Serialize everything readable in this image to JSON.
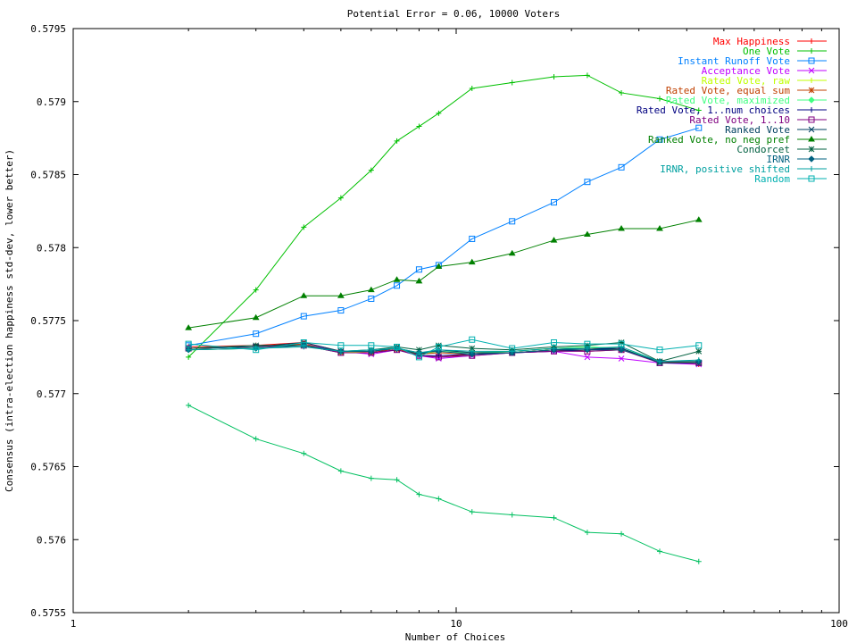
{
  "chart_data": {
    "type": "line",
    "title": "Potential Error = 0.06, 10000 Voters",
    "xlabel": "Number of Choices",
    "ylabel": "Consensus (intra-election happiness std-dev, lower better)",
    "xscale": "log",
    "xlim": [
      1,
      100
    ],
    "ylim": [
      0.5755,
      0.5795
    ],
    "xticks": [
      1,
      10,
      100
    ],
    "xtick_labels": [
      "1",
      "10",
      "100"
    ],
    "yticks": [
      0.5755,
      0.576,
      0.5765,
      0.577,
      0.5775,
      0.578,
      0.5785,
      0.579,
      0.5795
    ],
    "ytick_labels": [
      "0.5755",
      "0.576",
      "0.5765",
      "0.577",
      "0.5775",
      "0.578",
      "0.5785",
      "0.579",
      "0.5795"
    ],
    "grid": false,
    "legend_position": "top-right",
    "x": [
      2,
      3,
      4,
      5,
      6,
      7,
      8,
      9,
      11,
      14,
      18,
      22,
      27,
      34,
      43
    ],
    "series": [
      {
        "name": "Max Happiness",
        "color": "#ff0000",
        "marker": "plus",
        "values": [
          0.57732,
          0.57733,
          0.57735,
          0.57729,
          0.57728,
          0.57731,
          0.57726,
          0.57725,
          0.57727,
          0.57728,
          0.5773,
          0.57729,
          0.5773,
          0.57722,
          0.5772
        ]
      },
      {
        "name": "One Vote",
        "color": "#00c000",
        "marker": "plus",
        "values": [
          0.57725,
          0.57771,
          0.57814,
          0.57834,
          0.57853,
          0.57873,
          0.57883,
          0.57892,
          0.57909,
          0.57913,
          0.57917,
          0.57918,
          0.57906,
          0.57902,
          0.57894
        ]
      },
      {
        "name": "Instant Runoff Vote",
        "color": "#0080ff",
        "marker": "square",
        "values": [
          0.57733,
          0.57741,
          0.57753,
          0.57757,
          0.57765,
          0.57774,
          0.57785,
          0.57788,
          0.57806,
          0.57818,
          0.57831,
          0.57845,
          0.57855,
          0.57874,
          0.57882
        ]
      },
      {
        "name": "Acceptance Vote",
        "color": "#c000ff",
        "marker": "cross",
        "values": [
          0.57731,
          0.57732,
          0.57734,
          0.57729,
          0.57727,
          0.5773,
          0.57726,
          0.57724,
          0.57726,
          0.57728,
          0.57729,
          0.57725,
          0.57724,
          0.57721,
          0.5772
        ]
      },
      {
        "name": "Rated Vote, raw",
        "color": "#c0ff00",
        "marker": "plus",
        "values": [
          0.5773,
          0.57731,
          0.57733,
          0.57728,
          0.57729,
          0.57731,
          0.57727,
          0.57729,
          0.57728,
          0.57729,
          0.57731,
          0.57732,
          0.57731,
          0.57722,
          0.57722
        ]
      },
      {
        "name": "Rated Vote, equal sum",
        "color": "#c04000",
        "marker": "star",
        "values": [
          0.57731,
          0.57732,
          0.57734,
          0.57728,
          0.57728,
          0.5773,
          0.57727,
          0.57728,
          0.57727,
          0.57728,
          0.5773,
          0.57731,
          0.5773,
          0.57722,
          0.57721
        ]
      },
      {
        "name": "Rated Vote, maximized",
        "color": "#40ff80",
        "marker": "diamond",
        "values": [
          0.5773,
          0.57731,
          0.57733,
          0.57729,
          0.57729,
          0.57731,
          0.57728,
          0.57729,
          0.57728,
          0.57729,
          0.57731,
          0.57732,
          0.57731,
          0.57722,
          0.57722
        ]
      },
      {
        "name": "Rated Vote, 1..num choices",
        "color": "#000080",
        "marker": "plus",
        "values": [
          0.57731,
          0.57732,
          0.57733,
          0.57728,
          0.57728,
          0.5773,
          0.57726,
          0.57726,
          0.57727,
          0.57728,
          0.57729,
          0.5773,
          0.57731,
          0.57721,
          0.57721
        ]
      },
      {
        "name": "Rated Vote, 1..10",
        "color": "#800080",
        "marker": "square",
        "values": [
          0.57731,
          0.57732,
          0.57733,
          0.57728,
          0.57728,
          0.5773,
          0.57726,
          0.57725,
          0.57726,
          0.57728,
          0.57729,
          0.57729,
          0.5773,
          0.57721,
          0.57721
        ]
      },
      {
        "name": "Ranked Vote",
        "color": "#004060",
        "marker": "cross",
        "values": [
          0.57731,
          0.57732,
          0.57735,
          0.57729,
          0.57729,
          0.57731,
          0.57727,
          0.5773,
          0.57728,
          0.57728,
          0.5773,
          0.57731,
          0.57731,
          0.57721,
          0.57721
        ]
      },
      {
        "name": "Ranked Vote, no neg pref",
        "color": "#008000",
        "marker": "triangle",
        "values": [
          0.57745,
          0.57752,
          0.57767,
          0.57767,
          0.57771,
          0.57778,
          0.57777,
          0.57787,
          0.5779,
          0.57796,
          0.57805,
          0.57809,
          0.57813,
          0.57813,
          0.57819
        ]
      },
      {
        "name": "Condorcet",
        "color": "#006040",
        "marker": "star",
        "values": [
          0.57731,
          0.57733,
          0.57733,
          0.57729,
          0.5773,
          0.57732,
          0.5773,
          0.57733,
          0.57731,
          0.5773,
          0.57732,
          0.57733,
          0.57735,
          0.57722,
          0.57729
        ]
      },
      {
        "name": "IRNR",
        "color": "#006080",
        "marker": "diamond",
        "values": [
          0.5773,
          0.57731,
          0.57733,
          0.57729,
          0.57729,
          0.57731,
          0.57728,
          0.57729,
          0.57727,
          0.57728,
          0.5773,
          0.5773,
          0.5773,
          0.57722,
          0.57722
        ]
      },
      {
        "name": "IRNR, positive shifted",
        "color": "#00a0a0",
        "marker": "plus",
        "values": [
          0.5773,
          0.57731,
          0.57732,
          0.57729,
          0.5773,
          0.57731,
          0.57728,
          0.5773,
          0.57729,
          0.57729,
          0.57731,
          0.57731,
          0.57732,
          0.57722,
          0.57723
        ]
      },
      {
        "name": "Random",
        "color": "#00b0b0",
        "marker": "square",
        "values": [
          0.57734,
          0.5773,
          0.57735,
          0.57733,
          0.57733,
          0.57732,
          0.57725,
          0.57732,
          0.57737,
          0.57731,
          0.57735,
          0.57734,
          0.57734,
          0.5773,
          0.57733
        ]
      },
      {
        "name": "",
        "color": "#00c060",
        "marker": "plus",
        "values": [
          0.57692,
          0.57669,
          0.57659,
          0.57647,
          0.57642,
          0.57641,
          0.57631,
          0.57628,
          0.57619,
          0.57617,
          0.57615,
          0.57605,
          0.57604,
          0.57592,
          0.57585
        ]
      }
    ]
  }
}
